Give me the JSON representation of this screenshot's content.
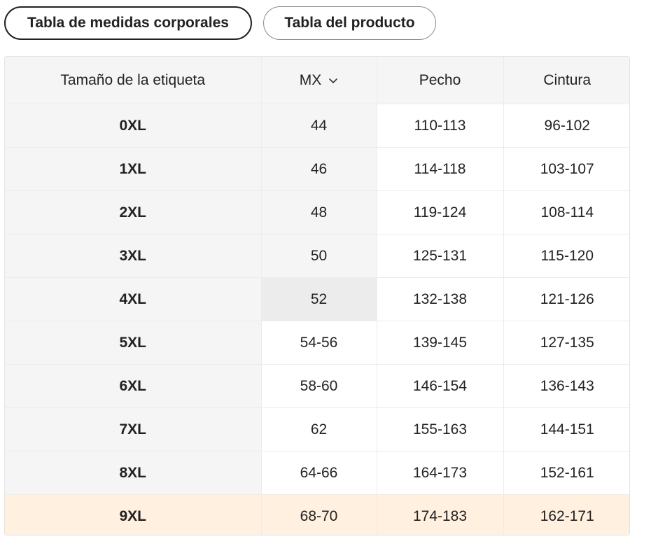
{
  "tabs": [
    {
      "label": "Tabla de medidas corporales",
      "active": true
    },
    {
      "label": "Tabla del producto",
      "active": false
    }
  ],
  "table": {
    "headers": {
      "size": "Tamaño de la etiqueta",
      "region": "MX",
      "chest": "Pecho",
      "waist": "Cintura"
    },
    "region_icon": "chevron-down-icon",
    "rows": [
      {
        "size": "0XL",
        "mx": "44",
        "chest": "110-113",
        "waist": "96-102"
      },
      {
        "size": "1XL",
        "mx": "46",
        "chest": "114-118",
        "waist": "103-107"
      },
      {
        "size": "2XL",
        "mx": "48",
        "chest": "119-124",
        "waist": "108-114"
      },
      {
        "size": "3XL",
        "mx": "50",
        "chest": "125-131",
        "waist": "115-120"
      },
      {
        "size": "4XL",
        "mx": "52",
        "chest": "132-138",
        "waist": "121-126"
      },
      {
        "size": "5XL",
        "mx": "54-56",
        "chest": "139-145",
        "waist": "127-135"
      },
      {
        "size": "6XL",
        "mx": "58-60",
        "chest": "146-154",
        "waist": "136-143"
      },
      {
        "size": "7XL",
        "mx": "62",
        "chest": "155-163",
        "waist": "144-151"
      },
      {
        "size": "8XL",
        "mx": "64-66",
        "chest": "164-173",
        "waist": "152-161"
      },
      {
        "size": "9XL",
        "mx": "68-70",
        "chest": "174-183",
        "waist": "162-171"
      }
    ],
    "highlighted_row_color": "#fff0df"
  }
}
